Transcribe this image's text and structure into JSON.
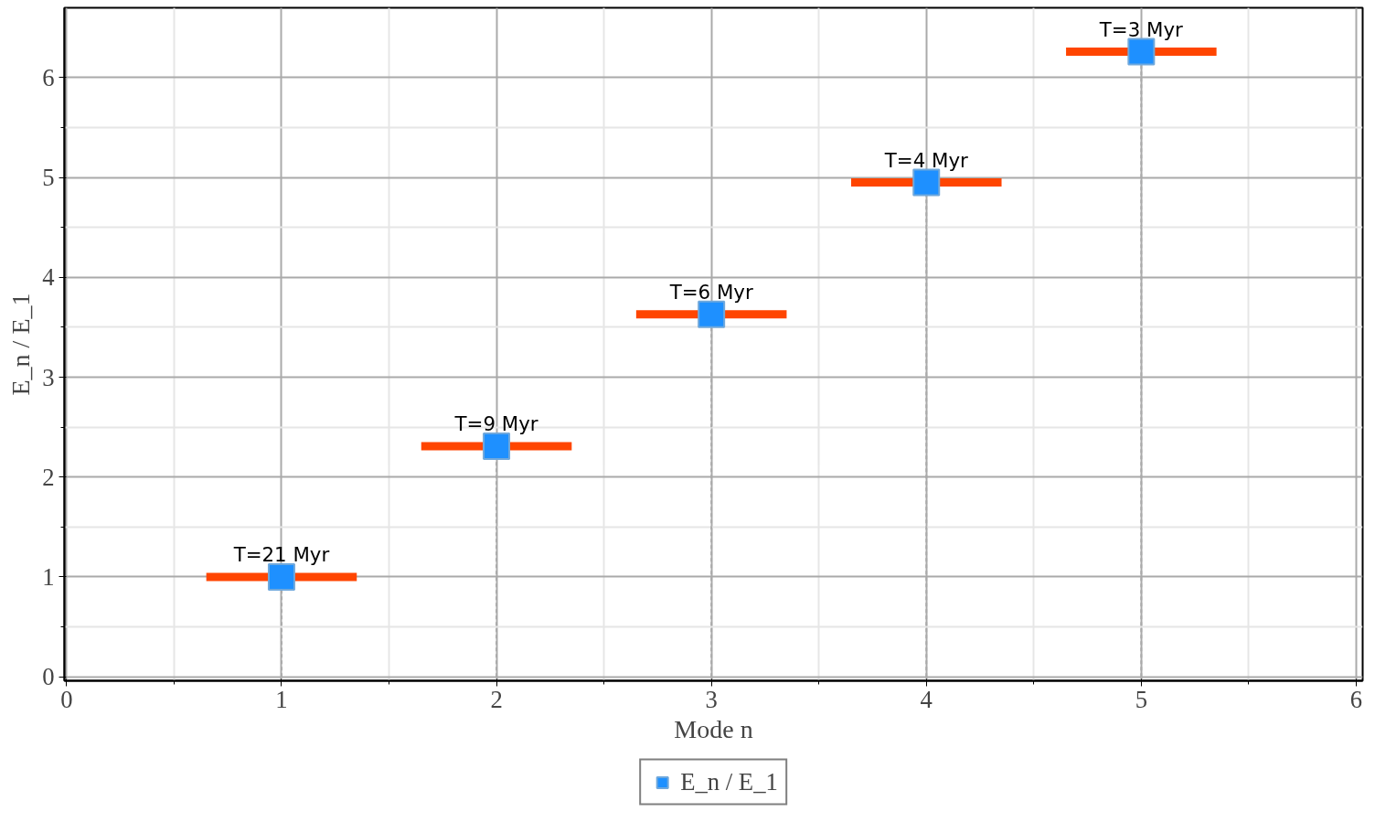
{
  "chart_data": {
    "type": "lollipop",
    "xlabel": "Mode n",
    "ylabel": "E_n / E_1",
    "x": [
      1,
      2,
      3,
      4,
      5
    ],
    "series": [
      {
        "name": "E_n / E_1",
        "color": "#1e90ff",
        "values": [
          1.0,
          2.31,
          3.63,
          4.95,
          6.26
        ],
        "xerrors": [
          0.35,
          0.35,
          0.35,
          0.35,
          0.35
        ]
      }
    ],
    "xlim": [
      -0.01,
      6.03
    ],
    "xticks": [
      0,
      1,
      2,
      3,
      4,
      5,
      6
    ],
    "ylim": [
      -0.04,
      6.7
    ],
    "yticks": [
      0,
      1,
      2,
      3,
      4,
      5,
      6
    ],
    "annotations": [
      {
        "text": "T=21 Myr",
        "x": 1,
        "y": 1.0
      },
      {
        "text": "T=9 Myr",
        "x": 2,
        "y": 2.31
      },
      {
        "text": "T=6 Myr",
        "x": 3,
        "y": 3.63
      },
      {
        "text": "T=4 Myr",
        "x": 4,
        "y": 4.95
      },
      {
        "text": "T=3 Myr",
        "x": 5,
        "y": 6.26
      }
    ],
    "grid": true,
    "legend": "bottom",
    "marker": "square",
    "line_style": "dashed"
  }
}
